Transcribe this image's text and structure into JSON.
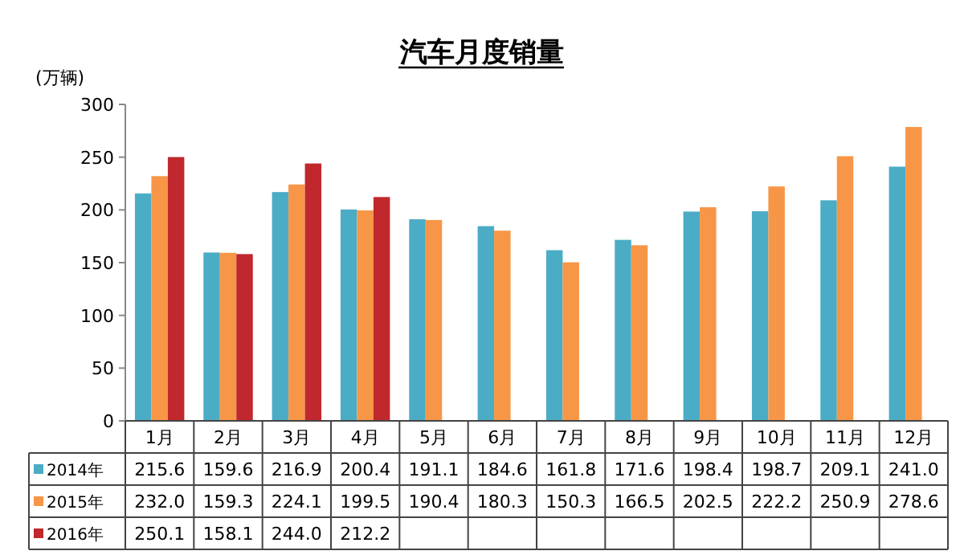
{
  "chart_data": {
    "type": "bar",
    "title": "汽车月度销量",
    "ylabel": "(万辆)",
    "categories": [
      "1月",
      "2月",
      "3月",
      "4月",
      "5月",
      "6月",
      "7月",
      "8月",
      "9月",
      "10月",
      "11月",
      "12月"
    ],
    "series": [
      {
        "name": "2014年",
        "color": "#4bacc6",
        "values": [
          215.6,
          159.6,
          216.9,
          200.4,
          191.1,
          184.6,
          161.8,
          171.6,
          198.4,
          198.7,
          209.1,
          241.0
        ],
        "value_labels": [
          "215.6",
          "159.6",
          "216.9",
          "200.4",
          "191.1",
          "184.6",
          "161.8",
          "171.6",
          "198.4",
          "198.7",
          "209.1",
          "241.0"
        ]
      },
      {
        "name": "2015年",
        "color": "#f79646",
        "values": [
          232.0,
          159.3,
          224.1,
          199.5,
          190.4,
          180.3,
          150.3,
          166.5,
          202.5,
          222.2,
          250.9,
          278.6
        ],
        "value_labels": [
          "232.0",
          "159.3",
          "224.1",
          "199.5",
          "190.4",
          "180.3",
          "150.3",
          "166.5",
          "202.5",
          "222.2",
          "250.9",
          "278.6"
        ]
      },
      {
        "name": "2016年",
        "color": "#c0282d",
        "values": [
          250.1,
          158.1,
          244.0,
          212.2,
          null,
          null,
          null,
          null,
          null,
          null,
          null,
          null
        ],
        "value_labels": [
          "250.1",
          "158.1",
          "244.0",
          "212.2",
          null,
          null,
          null,
          null,
          null,
          null,
          null,
          null
        ]
      }
    ],
    "ylim": [
      0,
      300
    ],
    "yticks": [
      0,
      50,
      100,
      150,
      200,
      250,
      300
    ],
    "legend": "bottom"
  }
}
